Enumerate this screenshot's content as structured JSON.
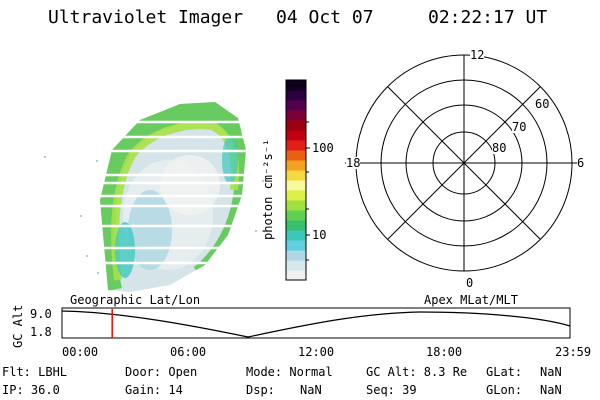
{
  "header": {
    "instrument": "Ultraviolet Imager",
    "date": "04 Oct 07",
    "time": "02:22:17 UT"
  },
  "colorbar": {
    "unit_label": "photon cm⁻²s⁻¹",
    "tick_100": "100",
    "tick_10": "10",
    "colors": [
      "#f0f0f0",
      "#d6e8ee",
      "#aed8e6",
      "#5ed0e0",
      "#3cc8b8",
      "#38c070",
      "#60d050",
      "#a0e040",
      "#dcf048",
      "#f8f89c",
      "#f8d840",
      "#f4a020",
      "#e86014",
      "#e02018",
      "#c00010",
      "#9c0010",
      "#7c0038",
      "#54004c",
      "#2c0040",
      "#100020"
    ]
  },
  "polar": {
    "label_12": "12",
    "label_18": "18",
    "label_6": "6",
    "label_0": "0",
    "label_60": "60",
    "label_70": "70",
    "label_80": "80"
  },
  "altitude_strip": {
    "left_title": "Geographic Lat/Lon",
    "right_title": "Apex MLat/MLT",
    "axis_label": "GC Alt",
    "y_max": "9.0",
    "y_min": "1.8",
    "x_ticks": [
      "00:00",
      "06:00",
      "12:00",
      "18:00",
      "23:59"
    ],
    "current_time_fraction": 0.0988,
    "marker_color": "#ff0000"
  },
  "status": {
    "filter": "Flt: LBHL",
    "door": "Door: Open",
    "mode": "Mode: Normal",
    "gc_alt": "GC Alt: 8.3 Re",
    "glat_label": "GLat:",
    "glat_value": "NaN",
    "ip": "IP: 36.0",
    "gain": "Gain: 14",
    "dsp_label": "Dsp:",
    "dsp_value": "NaN",
    "seq": "Seq: 39",
    "glon_label": "GLon:",
    "glon_value": "NaN"
  }
}
